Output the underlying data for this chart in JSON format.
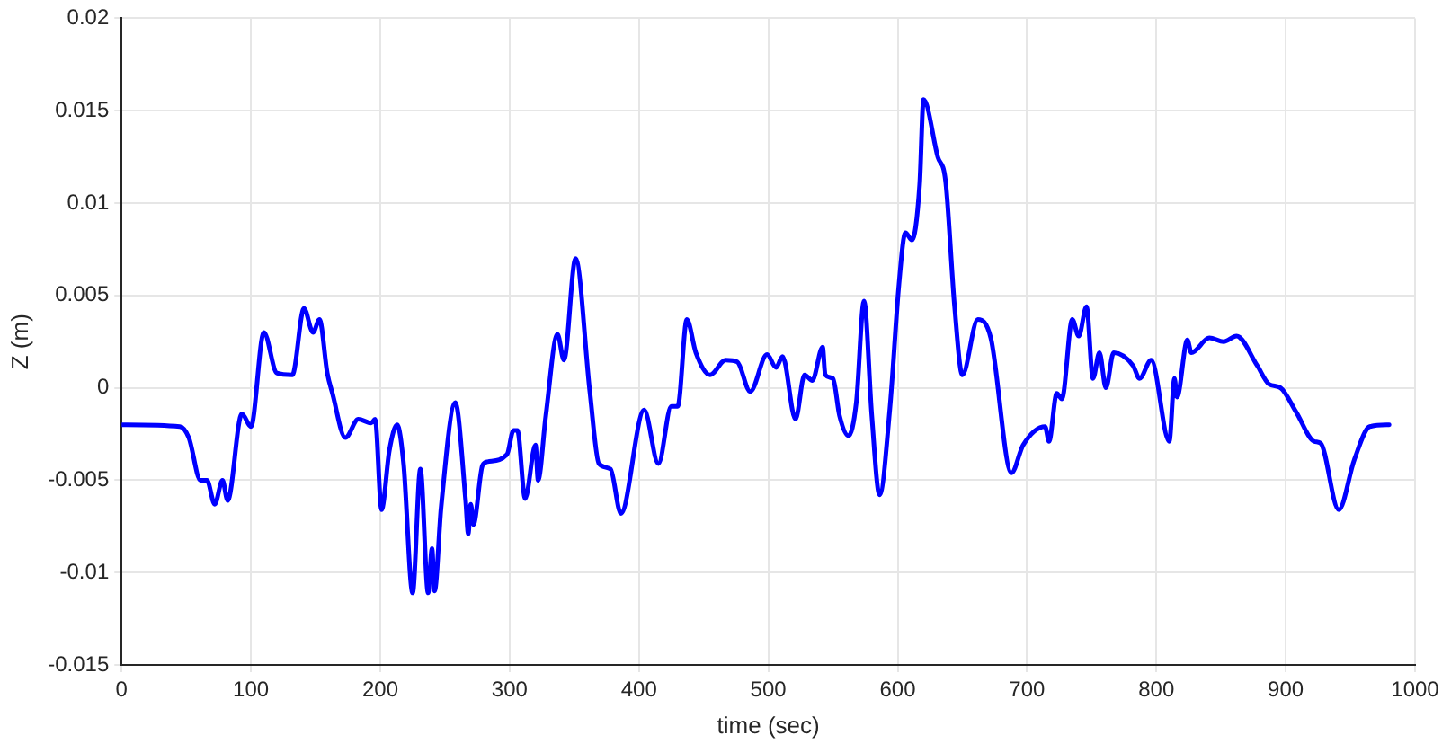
{
  "chart_data": {
    "type": "line",
    "xlabel": "time (sec)",
    "ylabel": "Z (m)",
    "xlim": [
      0,
      1000
    ],
    "xticks": [
      0,
      100,
      200,
      300,
      400,
      500,
      600,
      700,
      800,
      900,
      1000
    ],
    "ylim": [
      -0.015,
      0.02
    ],
    "yticks": [
      -0.015,
      -0.01,
      -0.005,
      0,
      0.005,
      0.01,
      0.015,
      0.02
    ],
    "grid": true,
    "marker": "none",
    "line_style": "solid",
    "series": [
      {
        "color": "#0000ff",
        "x": [
          0,
          45,
          52,
          61,
          66,
          72,
          78,
          82,
          93,
          100,
          110,
          120,
          132,
          141,
          148,
          153,
          159,
          163,
          173,
          183,
          193,
          196,
          201,
          207,
          213,
          218,
          225,
          231,
          237,
          240,
          242,
          247,
          258,
          266,
          268,
          270,
          272,
          279,
          283,
          298,
          303,
          306,
          312,
          320,
          322,
          328,
          337,
          342,
          351,
          362,
          369,
          378,
          386,
          404,
          415,
          425,
          430,
          437,
          444,
          455,
          467,
          476,
          486,
          499,
          506,
          511,
          521,
          528,
          534,
          542,
          544,
          550,
          555,
          562,
          568,
          574,
          580,
          586,
          594,
          601,
          606,
          611,
          617,
          620,
          631,
          637,
          644,
          650,
          662,
          672,
          688,
          697,
          714,
          717,
          723,
          727,
          735,
          740,
          746,
          751,
          756,
          761,
          767,
          782,
          787,
          796,
          810,
          814,
          816,
          824,
          827,
          841,
          852,
          862,
          878,
          887,
          896,
          908,
          922,
          927,
          941,
          953,
          965,
          980
        ],
        "values": [
          -0.002,
          -0.0021,
          -0.0027,
          -0.005,
          -0.005,
          -0.0063,
          -0.005,
          -0.0061,
          -0.0014,
          -0.0021,
          0.003,
          0.0008,
          0.0007,
          0.0043,
          0.003,
          0.0037,
          0.0008,
          -0.0003,
          -0.0027,
          -0.0017,
          -0.0019,
          -0.0017,
          -0.0066,
          -0.0034,
          -0.002,
          -0.0041,
          -0.0111,
          -0.0044,
          -0.0111,
          -0.0087,
          -0.011,
          -0.0065,
          -0.0008,
          -0.0061,
          -0.0079,
          -0.0063,
          -0.0074,
          -0.0042,
          -0.004,
          -0.0036,
          -0.0023,
          -0.0023,
          -0.006,
          -0.0031,
          -0.005,
          -0.0015,
          0.0029,
          0.0015,
          0.007,
          -0.0002,
          -0.0041,
          -0.0044,
          -0.0068,
          -0.0012,
          -0.0041,
          -0.001,
          -0.001,
          0.0037,
          0.0019,
          0.0007,
          0.0015,
          0.0014,
          -0.0002,
          0.0018,
          0.0011,
          0.0017,
          -0.0017,
          0.0007,
          0.0004,
          0.0022,
          0.0007,
          0.0005,
          -0.0015,
          -0.0026,
          -0.0008,
          0.0047,
          -0.0015,
          -0.0058,
          -0.0011,
          0.0056,
          0.0084,
          0.008,
          0.011,
          0.0156,
          0.0125,
          0.0112,
          0.0044,
          0.0007,
          0.0037,
          0.0027,
          -0.0046,
          -0.0031,
          -0.0021,
          -0.0029,
          -0.0003,
          -0.0006,
          0.0037,
          0.0028,
          0.0044,
          0.0005,
          0.0019,
          0,
          0.0019,
          0.0012,
          0.0005,
          0.0015,
          -0.0029,
          0.0005,
          -0.0005,
          0.0026,
          0.0019,
          0.0027,
          0.0025,
          0.0028,
          0.0012,
          0.0002,
          0,
          -0.0013,
          -0.0029,
          -0.003,
          -0.0066,
          -0.0039,
          -0.0021,
          -0.002
        ]
      }
    ]
  }
}
